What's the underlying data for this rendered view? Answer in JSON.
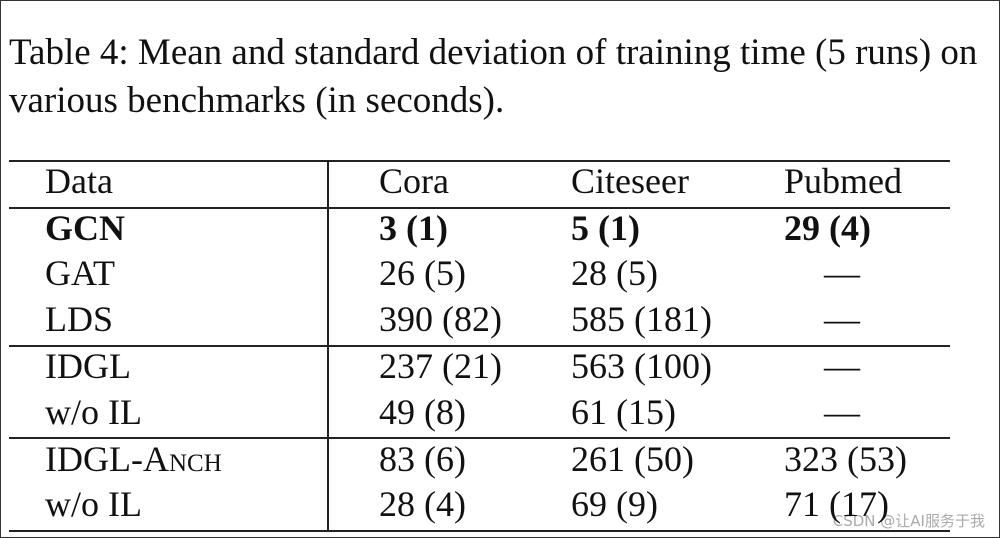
{
  "caption": "Table 4: Mean and standard deviation of training time (5 runs) on various benchmarks (in seconds).",
  "table": {
    "header": [
      "Data",
      "Cora",
      "Citeseer",
      "Pubmed"
    ],
    "rows": [
      [
        "GCN",
        "3 (1)",
        "5 (1)",
        "29 (4)"
      ],
      [
        "GAT",
        "26 (5)",
        "28 (5)",
        "—"
      ],
      [
        "LDS",
        "390 (82)",
        "585 (181)",
        "—"
      ],
      [
        "IDGL",
        "237 (21)",
        "563 (100)",
        "—"
      ],
      [
        "w/o IL",
        "49 (8)",
        "61 (15)",
        "—"
      ],
      [
        "IDGL-Anch",
        "83 (6)",
        "261 (50)",
        "323 (53)"
      ],
      [
        "w/o IL",
        "28 (4)",
        "69 (9)",
        "71 (17)"
      ]
    ]
  },
  "watermark": "CSDN @让AI服务于我"
}
